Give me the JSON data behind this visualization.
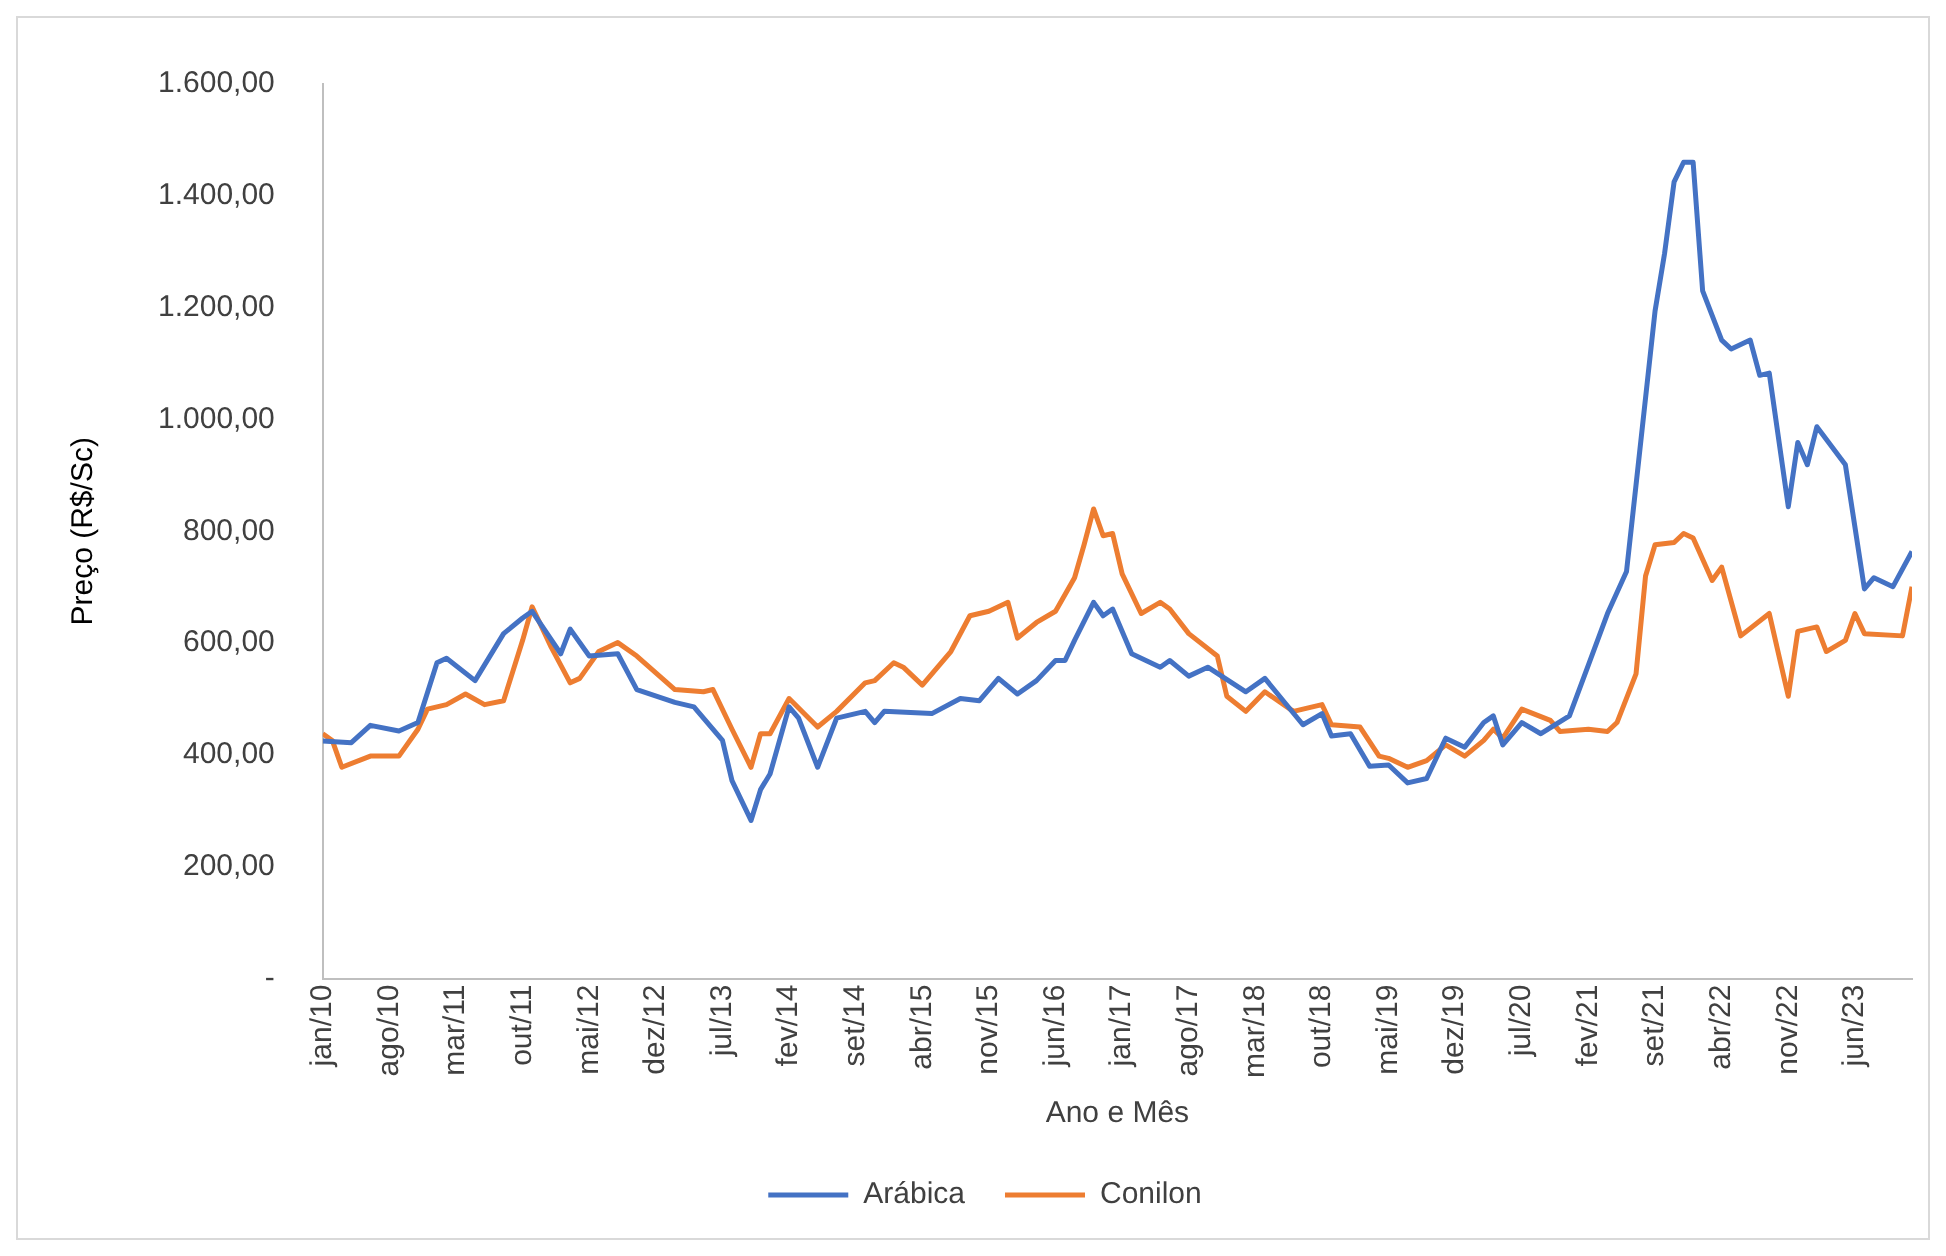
{
  "chart_data": {
    "type": "line",
    "xlabel": "Ano e Mês",
    "ylabel": "Preço (R$/Sc)",
    "xlim": [
      "2010-01",
      "2023-12"
    ],
    "xticks": [
      {
        "value": "2010-01",
        "label": "jan/10"
      },
      {
        "value": "2010-08",
        "label": "ago/10"
      },
      {
        "value": "2011-03",
        "label": "mar/11"
      },
      {
        "value": "2011-10",
        "label": "out/11"
      },
      {
        "value": "2012-05",
        "label": "mai/12"
      },
      {
        "value": "2012-12",
        "label": "dez/12"
      },
      {
        "value": "2013-07",
        "label": "jul/13"
      },
      {
        "value": "2014-02",
        "label": "fev/14"
      },
      {
        "value": "2014-09",
        "label": "set/14"
      },
      {
        "value": "2015-04",
        "label": "abr/15"
      },
      {
        "value": "2015-11",
        "label": "nov/15"
      },
      {
        "value": "2016-06",
        "label": "jun/16"
      },
      {
        "value": "2017-01",
        "label": "jan/17"
      },
      {
        "value": "2017-08",
        "label": "ago/17"
      },
      {
        "value": "2018-03",
        "label": "mar/18"
      },
      {
        "value": "2018-10",
        "label": "out/18"
      },
      {
        "value": "2019-05",
        "label": "mai/19"
      },
      {
        "value": "2019-12",
        "label": "dez/19"
      },
      {
        "value": "2020-07",
        "label": "jul/20"
      },
      {
        "value": "2021-02",
        "label": "fev/21"
      },
      {
        "value": "2021-09",
        "label": "set/21"
      },
      {
        "value": "2022-04",
        "label": "abr/22"
      },
      {
        "value": "2022-11",
        "label": "nov/22"
      },
      {
        "value": "2023-06",
        "label": "jun/23"
      }
    ],
    "ylim": [
      0,
      1600
    ],
    "yticks": [
      {
        "value": 0,
        "label": "-"
      },
      {
        "value": 200,
        "label": "200,00"
      },
      {
        "value": 400,
        "label": "400,00"
      },
      {
        "value": 600,
        "label": "600,00"
      },
      {
        "value": 800,
        "label": "800,00"
      },
      {
        "value": 1000,
        "label": "1.000,00"
      },
      {
        "value": 1200,
        "label": "1.200,00"
      },
      {
        "value": 1400,
        "label": "1.400,00"
      },
      {
        "value": 1600,
        "label": "1.600,00"
      }
    ],
    "grid": false,
    "legend": "bottom",
    "marker": "none",
    "line_style": "solid",
    "series": [
      {
        "name": "Arábica",
        "color": "#4472c4",
        "x": [
          "2010-01",
          "2010-04",
          "2010-06",
          "2010-09",
          "2010-11",
          "2011-01",
          "2011-02",
          "2011-05",
          "2011-08",
          "2011-10",
          "2011-11",
          "2012-02",
          "2012-03",
          "2012-05",
          "2012-08",
          "2012-10",
          "2013-02",
          "2013-04",
          "2013-07",
          "2013-08",
          "2013-10",
          "2013-11",
          "2013-12",
          "2014-02",
          "2014-03",
          "2014-05",
          "2014-07",
          "2014-10",
          "2014-11",
          "2014-12",
          "2015-05",
          "2015-08",
          "2015-10",
          "2015-12",
          "2016-02",
          "2016-04",
          "2016-06",
          "2016-07",
          "2016-08",
          "2016-10",
          "2016-11",
          "2016-12",
          "2017-02",
          "2017-05",
          "2017-06",
          "2017-08",
          "2017-10",
          "2018-02",
          "2018-04",
          "2018-08",
          "2018-10",
          "2018-11",
          "2019-01",
          "2019-03",
          "2019-05",
          "2019-07",
          "2019-09",
          "2019-11",
          "2020-01",
          "2020-03",
          "2020-04",
          "2020-05",
          "2020-07",
          "2020-09",
          "2020-12",
          "2021-02",
          "2021-04",
          "2021-06",
          "2021-07",
          "2021-09",
          "2021-10",
          "2021-11",
          "2021-12",
          "2022-01",
          "2022-02",
          "2022-04",
          "2022-05",
          "2022-07",
          "2022-08",
          "2022-09",
          "2022-11",
          "2022-12",
          "2023-01",
          "2023-02",
          "2023-05",
          "2023-07",
          "2023-08",
          "2023-10",
          "2023-12"
        ],
        "values": [
          425,
          422,
          453,
          443,
          458,
          565,
          573,
          533,
          617,
          645,
          657,
          581,
          625,
          577,
          581,
          517,
          494,
          486,
          426,
          354,
          283,
          338,
          366,
          486,
          466,
          378,
          466,
          478,
          458,
          478,
          474,
          501,
          497,
          537,
          509,
          533,
          569,
          569,
          605,
          673,
          649,
          661,
          581,
          557,
          569,
          541,
          557,
          513,
          537,
          454,
          474,
          434,
          438,
          380,
          382,
          350,
          358,
          430,
          414,
          458,
          470,
          418,
          458,
          438,
          470,
          561,
          653,
          728,
          883,
          1194,
          1297,
          1425,
          1460,
          1460,
          1230,
          1142,
          1126,
          1142,
          1079,
          1083,
          844,
          959,
          919,
          987,
          919,
          697,
          717,
          701,
          764
        ]
      },
      {
        "name": "Conilon",
        "color": "#ed7d31",
        "x": [
          "2010-01",
          "2010-02",
          "2010-03",
          "2010-06",
          "2010-09",
          "2010-11",
          "2010-12",
          "2011-02",
          "2011-04",
          "2011-06",
          "2011-08",
          "2011-10",
          "2011-11",
          "2012-01",
          "2012-03",
          "2012-04",
          "2012-06",
          "2012-08",
          "2012-10",
          "2013-02",
          "2013-05",
          "2013-06",
          "2013-08",
          "2013-10",
          "2013-11",
          "2013-12",
          "2014-02",
          "2014-05",
          "2014-07",
          "2014-10",
          "2014-11",
          "2015-01",
          "2015-02",
          "2015-04",
          "2015-07",
          "2015-09",
          "2015-11",
          "2016-01",
          "2016-02",
          "2016-04",
          "2016-06",
          "2016-08",
          "2016-09",
          "2016-10",
          "2016-11",
          "2016-12",
          "2017-01",
          "2017-03",
          "2017-05",
          "2017-06",
          "2017-08",
          "2017-11",
          "2017-12",
          "2018-02",
          "2018-04",
          "2018-07",
          "2018-10",
          "2018-11",
          "2019-02",
          "2019-04",
          "2019-05",
          "2019-07",
          "2019-09",
          "2019-11",
          "2020-01",
          "2020-03",
          "2020-04",
          "2020-05",
          "2020-07",
          "2020-10",
          "2020-11",
          "2021-02",
          "2021-04",
          "2021-05",
          "2021-07",
          "2021-08",
          "2021-09",
          "2021-11",
          "2021-12",
          "2022-01",
          "2022-03",
          "2022-04",
          "2022-06",
          "2022-09",
          "2022-11",
          "2022-12",
          "2023-02",
          "2023-03",
          "2023-05",
          "2023-06",
          "2023-07",
          "2023-11",
          "2023-12"
        ],
        "values": [
          438,
          426,
          378,
          398,
          398,
          446,
          482,
          490,
          509,
          490,
          497,
          605,
          665,
          593,
          529,
          537,
          585,
          601,
          577,
          517,
          513,
          517,
          446,
          378,
          438,
          438,
          501,
          450,
          478,
          529,
          533,
          565,
          557,
          525,
          585,
          649,
          657,
          673,
          609,
          637,
          657,
          717,
          776,
          840,
          792,
          796,
          724,
          653,
          673,
          661,
          617,
          577,
          505,
          478,
          513,
          478,
          490,
          454,
          450,
          398,
          394,
          378,
          390,
          418,
          398,
          426,
          446,
          430,
          482,
          462,
          442,
          446,
          442,
          458,
          545,
          720,
          776,
          780,
          796,
          788,
          712,
          736,
          613,
          653,
          505,
          621,
          629,
          585,
          605,
          653,
          617,
          613,
          701
        ]
      }
    ]
  }
}
